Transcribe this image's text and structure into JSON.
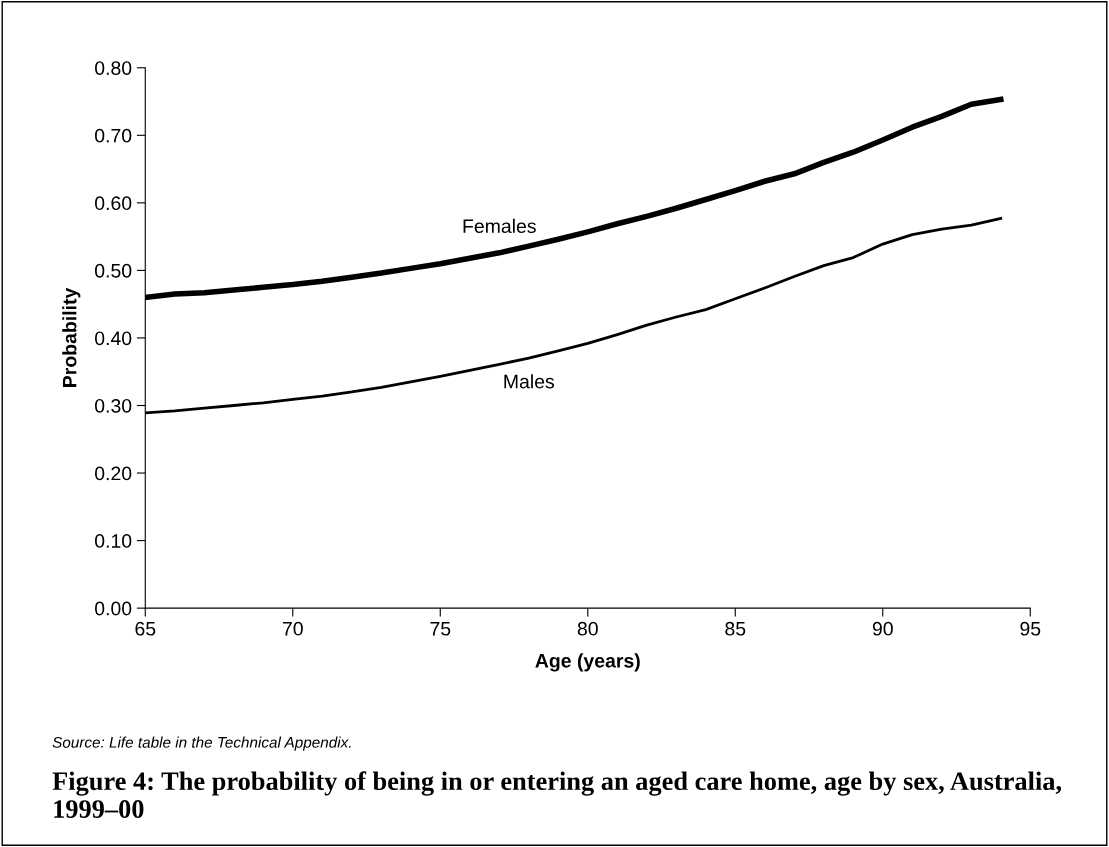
{
  "chart_data": {
    "type": "line",
    "title": "Figure 4: The probability of being in or entering an aged care home, age by sex, Australia, 1999–00",
    "xlabel": "Age (years)",
    "ylabel": "Probability",
    "x": [
      65,
      66,
      67,
      68,
      69,
      70,
      71,
      72,
      73,
      74,
      75,
      76,
      77,
      78,
      79,
      80,
      81,
      82,
      83,
      84,
      85,
      86,
      87,
      88,
      89,
      90,
      91,
      92,
      93,
      94
    ],
    "series": [
      {
        "name": "Females",
        "color": "#000000",
        "values": [
          0.46,
          0.465,
          0.467,
          0.471,
          0.475,
          0.479,
          0.484,
          0.49,
          0.496,
          0.503,
          0.51,
          0.518,
          0.526,
          0.536,
          0.546,
          0.557,
          0.569,
          0.58,
          0.592,
          0.605,
          0.618,
          0.632,
          0.643,
          0.66,
          0.675,
          0.693,
          0.712,
          0.728,
          0.746,
          0.753
        ]
      },
      {
        "name": "Males",
        "color": "#000000",
        "values": [
          0.289,
          0.292,
          0.296,
          0.3,
          0.304,
          0.309,
          0.314,
          0.32,
          0.327,
          0.335,
          0.343,
          0.352,
          0.361,
          0.37,
          0.381,
          0.392,
          0.405,
          0.419,
          0.431,
          0.442,
          0.458,
          0.474,
          0.491,
          0.507,
          0.519,
          0.539,
          0.553,
          0.561,
          0.567,
          0.577
        ]
      }
    ],
    "xlim": [
      65,
      95
    ],
    "xticks": [
      65,
      70,
      75,
      80,
      85,
      90,
      95
    ],
    "ylim": [
      0,
      0.8
    ],
    "yticks": [
      {
        "value": 0,
        "label": "0.00"
      },
      {
        "value": 0.1,
        "label": "0.10"
      },
      {
        "value": 0.2,
        "label": "0.20"
      },
      {
        "value": 0.3,
        "label": "0.30"
      },
      {
        "value": 0.4,
        "label": "0.40"
      },
      {
        "value": 0.5,
        "label": "0.50"
      },
      {
        "value": 0.6,
        "label": "0.60"
      },
      {
        "value": 0.7,
        "label": "0.70"
      },
      {
        "value": 0.8,
        "label": "0.80"
      }
    ],
    "grid": false,
    "legend": false,
    "marker": "none",
    "line_style": "solid",
    "annotations": [
      "Source: Life table in the Technical Appendix."
    ]
  }
}
